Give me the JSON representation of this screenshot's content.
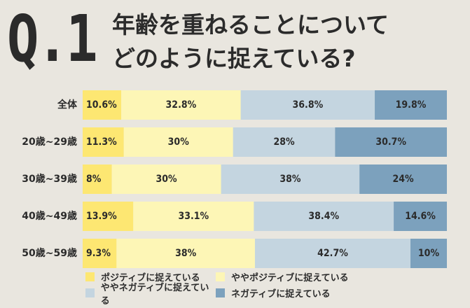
{
  "header": {
    "q_number": "Q.1",
    "title_line1": "年齢を重ねることについて",
    "title_line2": "どのように捉えている?"
  },
  "colors": {
    "background": "#e9e6df",
    "text": "#2b2b2b",
    "positive": "#fde772",
    "somewhat_positive": "#fdf6b6",
    "somewhat_negative": "#c4d5e0",
    "negative": "#7ca1bd"
  },
  "chart_data": {
    "type": "bar",
    "orientation": "horizontal",
    "stacked": true,
    "title": "年齢を重ねることについてどのように捉えている?",
    "categories": [
      "全体",
      "20歳~29歳",
      "30歳~39歳",
      "40歳~49歳",
      "50歳~59歳"
    ],
    "series": [
      {
        "name": "ポジティブに捉えている",
        "color": "#fde772",
        "values": [
          10.6,
          11.3,
          8,
          13.9,
          9.3
        ],
        "labels": [
          "10.6%",
          "11.3%",
          "8%",
          "13.9%",
          "9.3%"
        ]
      },
      {
        "name": "ややポジティブに捉えている",
        "color": "#fdf6b6",
        "values": [
          32.8,
          30,
          30,
          33.1,
          38
        ],
        "labels": [
          "32.8%",
          "30%",
          "30%",
          "33.1%",
          "38%"
        ]
      },
      {
        "name": "ややネガティブに捉えている",
        "color": "#c4d5e0",
        "values": [
          36.8,
          28,
          38,
          38.4,
          42.7
        ],
        "labels": [
          "36.8%",
          "28%",
          "38%",
          "38.4%",
          "42.7%"
        ]
      },
      {
        "name": "ネガティブに捉えている",
        "color": "#7ca1bd",
        "values": [
          19.8,
          30.7,
          24,
          14.6,
          10
        ],
        "labels": [
          "19.8%",
          "30.7%",
          "24%",
          "14.6%",
          "10%"
        ]
      }
    ],
    "xlim": [
      0,
      100
    ],
    "grid": false,
    "legend_position": "bottom"
  }
}
